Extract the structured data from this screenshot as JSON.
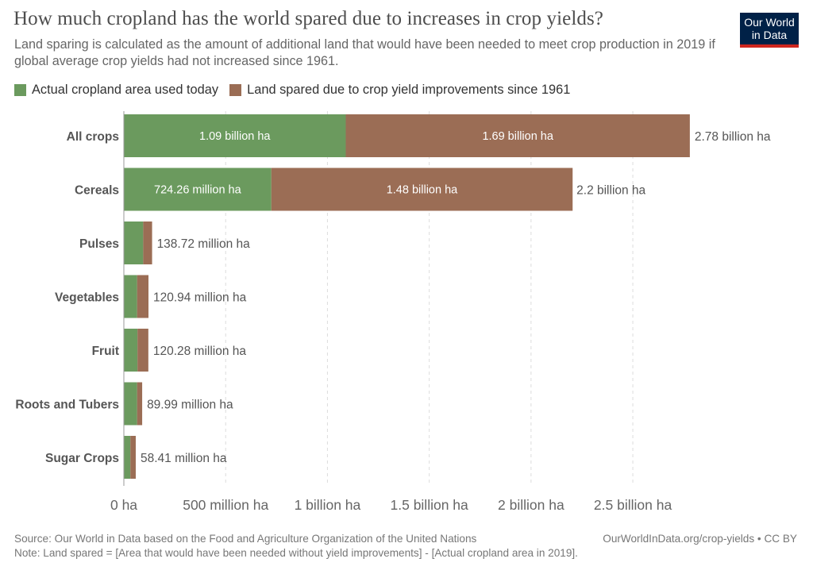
{
  "header": {
    "title": "How much cropland has the world spared due to increases in crop yields?",
    "subtitle": "Land sparing is calculated as the amount of additional land that would have been needed to meet crop production in 2019 if global average crop yields had not increased since 1961.",
    "logo_line1": "Our World",
    "logo_line2": "in Data"
  },
  "colors": {
    "actual": "#6b9a5e",
    "spared": "#9b6d55"
  },
  "legend": {
    "actual": "Actual cropland area used today",
    "spared": "Land spared due to crop yield improvements since 1961"
  },
  "chart_data": {
    "type": "bar",
    "orientation": "horizontal",
    "stacked": true,
    "unit": "ha",
    "categories": [
      "All crops",
      "Cereals",
      "Pulses",
      "Vegetables",
      "Fruit",
      "Roots and Tubers",
      "Sugar Crops"
    ],
    "series": [
      {
        "name": "Actual cropland area used today",
        "values": [
          1090000000,
          724260000,
          95000000,
          65000000,
          67000000,
          65000000,
          32000000
        ],
        "labels": [
          "1.09 billion ha",
          "724.26 million ha",
          "",
          "",
          "",
          "",
          ""
        ]
      },
      {
        "name": "Land spared due to crop yield improvements since 1961",
        "values": [
          1690000000,
          1480000000,
          43720000,
          55940000,
          53280000,
          24990000,
          26410000
        ],
        "labels": [
          "1.69 billion ha",
          "1.48 billion ha",
          "",
          "",
          "",
          "",
          ""
        ]
      }
    ],
    "totals": [
      2780000000,
      2200000000,
      138720000,
      120940000,
      120280000,
      89990000,
      58410000
    ],
    "total_labels": [
      "2.78 billion ha",
      "2.2 billion ha",
      "138.72 million ha",
      "120.94 million ha",
      "120.28 million ha",
      "89.99 million ha",
      "58.41 million ha"
    ],
    "xlim": [
      0,
      2800000000
    ],
    "x_ticks": [
      0,
      500000000,
      1000000000,
      1500000000,
      2000000000,
      2500000000
    ],
    "x_tick_labels": [
      "0 ha",
      "500 million ha",
      "1 billion ha",
      "1.5 billion ha",
      "2 billion ha",
      "2.5 billion ha"
    ],
    "grid": true,
    "legend_position": "top-left"
  },
  "footer": {
    "source": "Source: Our World in Data based on the Food and Agriculture Organization of the United Nations",
    "note": "Note: Land spared = [Area that would have been needed without yield improvements] - [Actual cropland area in 2019].",
    "credit": "OurWorldInData.org/crop-yields • CC BY"
  }
}
